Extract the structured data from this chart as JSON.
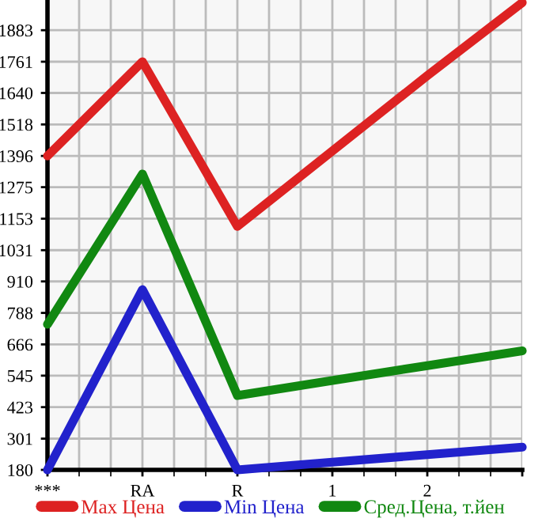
{
  "chart_data": {
    "type": "line",
    "categories": [
      "***",
      "RA",
      "R",
      "1",
      "2",
      null
    ],
    "series": [
      {
        "name": "Max Цена",
        "color": "#dd2222",
        "values": [
          1396,
          1761,
          1123,
          1415,
          1707,
          1990
        ]
      },
      {
        "name": "Min Цена",
        "color": "#2222cc",
        "values": [
          180,
          878,
          180,
          210,
          239,
          268
        ]
      },
      {
        "name": "Сред.Цена, т.йен",
        "color": "#118811",
        "values": [
          744,
          1326,
          468,
          526,
          584,
          641
        ]
      }
    ],
    "ylim": [
      180,
      2000
    ],
    "yticks": [
      180,
      301,
      423,
      545,
      666,
      788,
      910,
      1031,
      1153,
      1275,
      1396,
      1518,
      1640,
      1761,
      1883
    ],
    "grid": true,
    "legend": "bottom",
    "marker": "none",
    "line_style": "solid"
  }
}
